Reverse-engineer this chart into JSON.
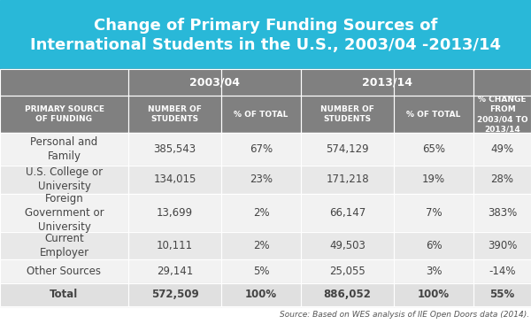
{
  "title_line1": "Change of Primary Funding Sources of",
  "title_line2": "International Students in the U.S., 2003/04 -2013/14",
  "title_bg": "#29b8d8",
  "title_color": "#ffffff",
  "header_bg": "#808080",
  "header_color": "#ffffff",
  "subheader_bg": "#808080",
  "row_bg_odd": "#f0f0f0",
  "row_bg_even": "#e0e0e0",
  "row_bg_last": "#d0d0d0",
  "source_text": "Source: Based on WES analysis of IIE Open Doors data (2014).",
  "col_headers_top": [
    "",
    "2003/04",
    "",
    "2013/14",
    "",
    "% CHANGE\nFROM\n2003/04 TO\n2013/14"
  ],
  "col_headers_sub": [
    "PRIMARY SOURCE\nOF FUNDING",
    "NUMBER OF\nSTUDENTS",
    "% OF TOTAL",
    "NUMBER OF\nSTUDENTS",
    "% OF TOTAL",
    ""
  ],
  "rows": [
    [
      "Personal and\nFamily",
      "385,543",
      "67%",
      "574,129",
      "65%",
      "49%"
    ],
    [
      "U.S. College or\nUniversity",
      "134,015",
      "23%",
      "171,218",
      "19%",
      "28%"
    ],
    [
      "Foreign\nGovernment or\nUniversity",
      "13,699",
      "2%",
      "66,147",
      "7%",
      "383%"
    ],
    [
      "Current\nEmployer",
      "10,111",
      "2%",
      "49,503",
      "6%",
      "390%"
    ],
    [
      "Other Sources",
      "29,141",
      "5%",
      "25,055",
      "3%",
      "-14%"
    ],
    [
      "Total",
      "572,509",
      "100%",
      "886,052",
      "100%",
      "55%"
    ]
  ]
}
